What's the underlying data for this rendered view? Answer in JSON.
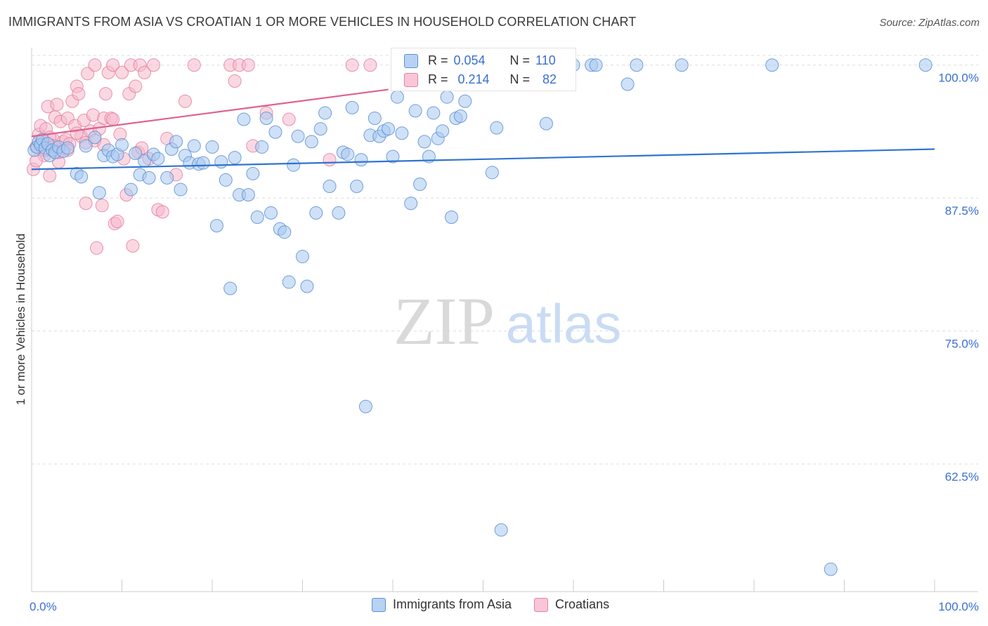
{
  "title": "IMMIGRANTS FROM ASIA VS CROATIAN 1 OR MORE VEHICLES IN HOUSEHOLD CORRELATION CHART",
  "source": "Source: ZipAtlas.com",
  "watermark": {
    "zip": "ZIP",
    "atlas": "atlas"
  },
  "colors": {
    "blue_fill": "#a8c8ef",
    "blue_stroke": "#5b8fd6",
    "blue_line": "#2f74d0",
    "pink_fill": "#f5b8cb",
    "pink_stroke": "#e57fa1",
    "pink_line": "#e0608c",
    "tick_label": "#3b6fd0",
    "grid": "#dddddd"
  },
  "stats": {
    "rows": [
      {
        "r_label": "R =",
        "r_value": "0.054",
        "n_label": "N =",
        "n_value": "110"
      },
      {
        "r_label": "R =",
        "r_value": "0.214",
        "n_label": "N =",
        "n_value": "82"
      }
    ]
  },
  "legend": {
    "items": [
      "Immigrants from Asia",
      "Croatians"
    ]
  },
  "chart_data": {
    "type": "scatter",
    "title": "IMMIGRANTS FROM ASIA VS CROATIAN 1 OR MORE VEHICLES IN HOUSEHOLD CORRELATION CHART",
    "xlabel": "",
    "ylabel": "1 or more Vehicles in Household",
    "xlim": [
      0,
      100
    ],
    "ylim": [
      50.5,
      101.5
    ],
    "x_tick_labels": [
      "0.0%",
      "100.0%"
    ],
    "y_ticks": [
      62.5,
      75.0,
      87.5,
      100.0
    ],
    "y_tick_labels": [
      "62.5%",
      "75.0%",
      "87.5%",
      "100.0%"
    ],
    "grid": true,
    "series": [
      {
        "name": "Immigrants from Asia",
        "r": 0.054,
        "n": 110,
        "trend": {
          "x": [
            0,
            100
          ],
          "y": [
            90.2,
            92.1
          ]
        },
        "points": [
          [
            0.3,
            92.0
          ],
          [
            0.6,
            92.3
          ],
          [
            0.8,
            92.8
          ],
          [
            1.0,
            92.5
          ],
          [
            1.2,
            93.0
          ],
          [
            1.5,
            92.2
          ],
          [
            1.8,
            92.6
          ],
          [
            2.0,
            91.5
          ],
          [
            2.3,
            92.0
          ],
          [
            2.6,
            91.8
          ],
          [
            3.0,
            92.3
          ],
          [
            3.5,
            91.9
          ],
          [
            4.0,
            92.2
          ],
          [
            5.0,
            89.8
          ],
          [
            5.5,
            89.5
          ],
          [
            6.0,
            92.4
          ],
          [
            7.0,
            93.2
          ],
          [
            7.5,
            88.0
          ],
          [
            8.0,
            91.5
          ],
          [
            8.5,
            92.0
          ],
          [
            9.0,
            91.4
          ],
          [
            9.5,
            91.6
          ],
          [
            10.0,
            92.5
          ],
          [
            11.0,
            88.3
          ],
          [
            11.5,
            91.7
          ],
          [
            12.0,
            89.7
          ],
          [
            12.5,
            91.0
          ],
          [
            13.0,
            89.4
          ],
          [
            13.5,
            91.6
          ],
          [
            14.0,
            91.2
          ],
          [
            15.0,
            89.4
          ],
          [
            15.5,
            92.1
          ],
          [
            16.0,
            92.8
          ],
          [
            16.5,
            88.3
          ],
          [
            17.0,
            91.5
          ],
          [
            17.5,
            90.8
          ],
          [
            18.0,
            92.4
          ],
          [
            18.5,
            90.7
          ],
          [
            19.0,
            90.8
          ],
          [
            20.0,
            92.3
          ],
          [
            20.5,
            84.9
          ],
          [
            21.0,
            90.9
          ],
          [
            21.5,
            89.2
          ],
          [
            22.0,
            79.0
          ],
          [
            22.5,
            91.3
          ],
          [
            23.0,
            87.8
          ],
          [
            23.5,
            94.9
          ],
          [
            24.0,
            87.8
          ],
          [
            24.5,
            89.8
          ],
          [
            25.0,
            85.7
          ],
          [
            25.5,
            92.3
          ],
          [
            26.0,
            95.0
          ],
          [
            26.5,
            86.1
          ],
          [
            27.0,
            93.7
          ],
          [
            27.5,
            84.6
          ],
          [
            28.0,
            84.3
          ],
          [
            28.5,
            79.6
          ],
          [
            29.0,
            90.6
          ],
          [
            29.5,
            93.3
          ],
          [
            30.0,
            82.0
          ],
          [
            30.5,
            79.2
          ],
          [
            31.0,
            92.8
          ],
          [
            31.5,
            86.1
          ],
          [
            32.0,
            94.0
          ],
          [
            32.5,
            95.5
          ],
          [
            33.0,
            88.6
          ],
          [
            34.0,
            86.1
          ],
          [
            34.5,
            91.8
          ],
          [
            35.0,
            91.6
          ],
          [
            35.5,
            96.0
          ],
          [
            36.0,
            88.6
          ],
          [
            36.5,
            91.1
          ],
          [
            37.0,
            67.9
          ],
          [
            37.5,
            93.4
          ],
          [
            38.0,
            95.0
          ],
          [
            38.5,
            93.3
          ],
          [
            39.0,
            93.8
          ],
          [
            39.5,
            94.0
          ],
          [
            40.0,
            91.4
          ],
          [
            40.5,
            97.0
          ],
          [
            41.0,
            93.6
          ],
          [
            42.0,
            87.0
          ],
          [
            42.5,
            95.7
          ],
          [
            43.0,
            88.8
          ],
          [
            43.5,
            92.8
          ],
          [
            44.0,
            91.4
          ],
          [
            44.5,
            95.5
          ],
          [
            45.0,
            93.1
          ],
          [
            45.5,
            93.8
          ],
          [
            46.0,
            97.0
          ],
          [
            46.5,
            85.7
          ],
          [
            47.0,
            95.0
          ],
          [
            47.5,
            95.2
          ],
          [
            48.0,
            96.6
          ],
          [
            49.0,
            100.0
          ],
          [
            51.0,
            89.9
          ],
          [
            51.5,
            94.1
          ],
          [
            52.0,
            56.3
          ],
          [
            53.0,
            100.0
          ],
          [
            56.0,
            100.0
          ],
          [
            57.0,
            94.5
          ],
          [
            60.0,
            100.0
          ],
          [
            62.0,
            100.0
          ],
          [
            62.5,
            100.0
          ],
          [
            66.0,
            98.2
          ],
          [
            67.0,
            100.0
          ],
          [
            72.0,
            100.0
          ],
          [
            82.0,
            100.0
          ],
          [
            88.5,
            52.6
          ],
          [
            99.0,
            100.0
          ]
        ]
      },
      {
        "name": "Croatians",
        "r": 0.214,
        "n": 82,
        "trend": {
          "x": [
            0,
            39.5
          ],
          "y": [
            93.3,
            97.7
          ]
        },
        "points": [
          [
            0.2,
            90.2
          ],
          [
            0.5,
            92.3
          ],
          [
            0.8,
            93.5
          ],
          [
            1.0,
            94.3
          ],
          [
            1.2,
            92.8
          ],
          [
            1.4,
            91.5
          ],
          [
            1.6,
            94.0
          ],
          [
            1.8,
            96.1
          ],
          [
            2.0,
            89.6
          ],
          [
            2.2,
            92.4
          ],
          [
            2.4,
            93.0
          ],
          [
            2.6,
            95.1
          ],
          [
            2.8,
            96.3
          ],
          [
            3.0,
            90.9
          ],
          [
            3.2,
            94.7
          ],
          [
            3.5,
            92.8
          ],
          [
            3.8,
            93.0
          ],
          [
            4.0,
            95.0
          ],
          [
            4.2,
            92.6
          ],
          [
            4.5,
            96.6
          ],
          [
            4.8,
            94.3
          ],
          [
            5.0,
            98.0
          ],
          [
            5.2,
            97.3
          ],
          [
            5.5,
            93.3
          ],
          [
            5.8,
            94.8
          ],
          [
            6.0,
            87.0
          ],
          [
            6.2,
            99.2
          ],
          [
            6.5,
            93.8
          ],
          [
            6.8,
            95.3
          ],
          [
            7.0,
            100.0
          ],
          [
            7.2,
            82.8
          ],
          [
            7.5,
            94.0
          ],
          [
            7.8,
            86.8
          ],
          [
            8.0,
            95.0
          ],
          [
            8.2,
            97.3
          ],
          [
            8.5,
            99.3
          ],
          [
            8.8,
            95.0
          ],
          [
            9.0,
            100.0
          ],
          [
            9.2,
            85.1
          ],
          [
            9.5,
            85.3
          ],
          [
            9.8,
            93.5
          ],
          [
            10.0,
            99.3
          ],
          [
            10.2,
            91.2
          ],
          [
            10.5,
            87.8
          ],
          [
            10.8,
            97.3
          ],
          [
            11.0,
            100.0
          ],
          [
            11.2,
            83.0
          ],
          [
            11.5,
            98.0
          ],
          [
            11.8,
            91.8
          ],
          [
            12.0,
            100.0
          ],
          [
            12.2,
            92.2
          ],
          [
            12.5,
            99.3
          ],
          [
            13.0,
            91.2
          ],
          [
            13.5,
            100.0
          ],
          [
            14.0,
            86.4
          ],
          [
            14.5,
            86.2
          ],
          [
            15.0,
            93.1
          ],
          [
            16.0,
            89.7
          ],
          [
            17.0,
            96.6
          ],
          [
            18.0,
            100.0
          ],
          [
            22.0,
            100.0
          ],
          [
            22.5,
            98.5
          ],
          [
            23.0,
            100.0
          ],
          [
            24.0,
            100.0
          ],
          [
            24.5,
            92.4
          ],
          [
            26.0,
            95.5
          ],
          [
            28.5,
            94.9
          ],
          [
            33.0,
            91.1
          ],
          [
            35.5,
            100.0
          ],
          [
            37.5,
            100.0
          ],
          [
            1.0,
            92.5
          ],
          [
            2.0,
            93.2
          ],
          [
            3.0,
            91.8
          ],
          [
            4.0,
            92.0
          ],
          [
            5.0,
            93.6
          ],
          [
            6.0,
            92.7
          ],
          [
            7.0,
            92.9
          ],
          [
            8.0,
            92.5
          ],
          [
            9.0,
            94.9
          ],
          [
            0.5,
            91.0
          ],
          [
            1.5,
            92.0
          ],
          [
            2.5,
            92.4
          ]
        ]
      }
    ]
  }
}
